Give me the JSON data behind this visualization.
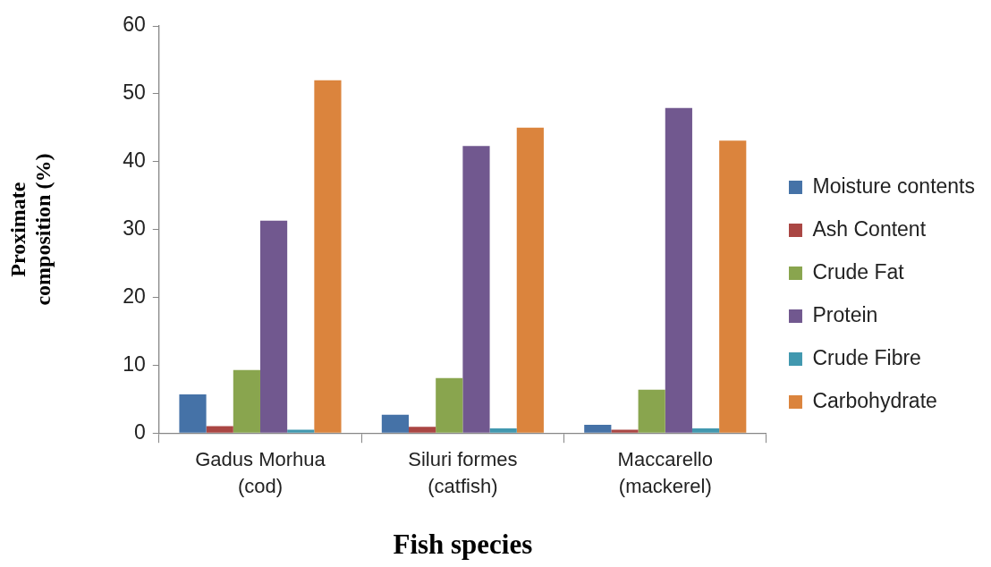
{
  "chart_data": {
    "type": "bar",
    "xlabel": "Fish species",
    "ylabel": "Proximate composition (%)",
    "categories": [
      "Gadus Morhua (cod)",
      "Siluri formes (catfish)",
      "Maccarello (mackerel)"
    ],
    "series": [
      {
        "name": "Moisture contents",
        "color": "#4572a7",
        "values": [
          5.7,
          2.7,
          1.2
        ]
      },
      {
        "name": "Ash Content",
        "color": "#aa4643",
        "values": [
          1.0,
          0.9,
          0.5
        ]
      },
      {
        "name": "Crude Fat",
        "color": "#89a54e",
        "values": [
          9.3,
          8.1,
          6.4
        ]
      },
      {
        "name": "Protein",
        "color": "#71588f",
        "values": [
          31.3,
          42.3,
          47.9
        ]
      },
      {
        "name": "Crude Fibre",
        "color": "#4198af",
        "values": [
          0.5,
          0.7,
          0.7
        ]
      },
      {
        "name": "Carbohydrate",
        "color": "#db843d",
        "values": [
          52.0,
          45.0,
          43.1
        ]
      }
    ],
    "ylim": [
      0,
      60
    ],
    "yticks": [
      0,
      10,
      20,
      30,
      40,
      50,
      60
    ],
    "grid": false,
    "legend": "right"
  }
}
